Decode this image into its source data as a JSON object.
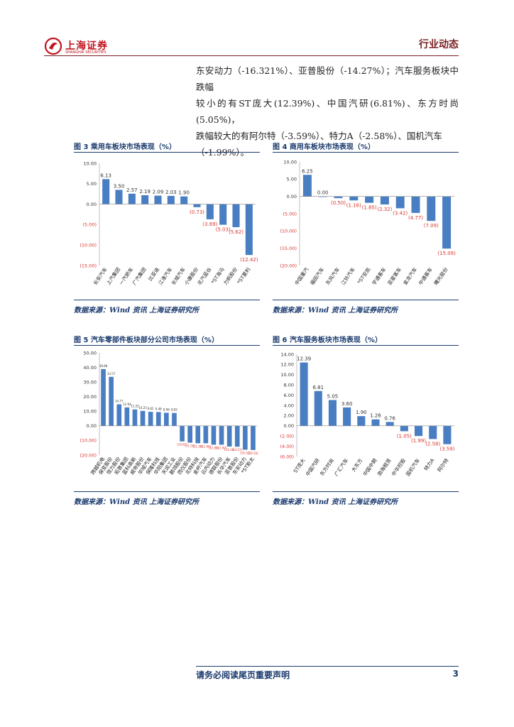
{
  "header": {
    "logo_text": "上海证券",
    "logo_sub": "SHANGHAI SECURITIES",
    "doc_type": "行业动态"
  },
  "body_text": {
    "lines": [
      "东安动力（-16.321%）、亚普股份（-14.27%）；汽车服务板块中跌幅",
      "较小的有ST庞大(12.39%)、中国汽研(6.81%)、东方时尚(5.05%)，",
      "跌幅较大的有阿尔特（-3.59%）、特力A（-2.58%）、国机汽车",
      "（-1.99%）。"
    ]
  },
  "colors": {
    "bar": "#4a7ec2",
    "neg_label": "#d9352f",
    "title": "#1a3a6e",
    "brand": "#c0131d"
  },
  "charts": [
    {
      "title": "图 3 乘用车板块市场表现（%）",
      "source": "数据来源：Wind 资讯 上海证券研究所"
    },
    {
      "title": "图 4 商用车板块市场表现（%）",
      "source": "数据来源：Wind 资讯 上海证券研究所"
    },
    {
      "title": "图 5 汽车零部件板块部分公司市场表现（%）",
      "source": "数据来源：Wind 资讯 上海证券研究所"
    },
    {
      "title": "图 6 汽车服务板块市场表现（%）",
      "source": "数据来源：Wind 资讯 上海证券研究所"
    }
  ],
  "chart_data": [
    {
      "type": "bar",
      "title": "图 3 乘用车板块市场表现（%）",
      "categories": [
        "长安汽车",
        "上汽集团",
        "一汽轿车",
        "广汽集团",
        "比亚迪",
        "江淮汽车",
        "长城汽车",
        "小康股份",
        "北汽蓝谷",
        "*ST海马",
        "力帆股份",
        "*ST夏利"
      ],
      "values": [
        6.13,
        3.5,
        2.57,
        2.19,
        2.09,
        2.03,
        1.9,
        -0.73,
        -3.69,
        -5.03,
        -5.62,
        -12.42
      ],
      "labels": [
        "6.13",
        "3.50",
        "2.57",
        "2.19",
        "2.09",
        "2.03",
        "1.90",
        "(0.73)",
        "(3.69)",
        "(5.03)",
        "(5.62)",
        "(12.42)"
      ],
      "yticks": [
        "10.00",
        "5.00",
        "0.00",
        "(5.00)",
        "(10.00)",
        "(15.00)"
      ],
      "ylim": [
        -15,
        10
      ]
    },
    {
      "type": "bar",
      "title": "图 4 商用车板块市场表现（%）",
      "categories": [
        "中国重汽",
        "福田汽车",
        "东风汽车",
        "江铃汽车",
        "*ST安凯",
        "宇通客车",
        "亚星客车",
        "金龙汽车",
        "中通客车",
        "曙光股份"
      ],
      "values": [
        6.25,
        0.0,
        -0.5,
        -1.16,
        -1.85,
        -2.32,
        -3.42,
        -4.77,
        -7.09,
        -15.09
      ],
      "labels": [
        "6.25",
        "0.00",
        "(0.50)",
        "(1.16)",
        "(1.85)",
        "(2.32)",
        "(3.42)",
        "(4.77)",
        "(7.09)",
        "(15.09)"
      ],
      "yticks": [
        "10.00",
        "5.00",
        "0.00",
        "(5.00)",
        "(10.00)",
        "(15.00)",
        "(20.00)"
      ],
      "ylim": [
        -20,
        10
      ]
    },
    {
      "type": "bar",
      "title": "图 5 汽车零部件板块部分公司市场表现（%）",
      "categories": [
        "跨越机电",
        "保变股份",
        "恒力股份",
        "拓普集团",
        "蓝科高新",
        "威帝股份",
        "华域汽车",
        "保隆科技",
        "华阳集团",
        "天润工业",
        "鹏翎股份",
        "西仪股份",
        "北特科技",
        "金杯汽车",
        "云内动力",
        "德联股份",
        "长华汽车",
        "亚普股份",
        "东安动力",
        "*ST斯太"
      ],
      "values": [
        38.88,
        33.57,
        14.77,
        12.64,
        11.25,
        10.25,
        9.62,
        9.48,
        8.96,
        8.82,
        -10.62,
        -11.5,
        -11.9,
        -11.9,
        -12.9,
        -12.9,
        -14.16,
        -14.27,
        -16.32,
        -16.5
      ],
      "labels": [
        "38.88",
        "33.57",
        "14.77",
        "12.64",
        "11.25",
        "10.25",
        "9.62",
        "9.48",
        "8.96",
        "8.82",
        "(10.62)",
        "(11.50)",
        "(11.90)",
        "(11.90)",
        "(12.90)",
        "(12.90)",
        "(14.16)",
        "(14.27)",
        "(16.32)",
        "(16.50)"
      ],
      "yticks": [
        "50.00",
        "40.00",
        "30.00",
        "20.00",
        "10.00",
        "0.00",
        "(10.00)",
        "(20.00)"
      ],
      "ylim": [
        -20,
        50
      ]
    },
    {
      "type": "bar",
      "title": "图 6 汽车服务板块市场表现（%）",
      "categories": [
        "ST庞大",
        "中国汽研",
        "东方时尚",
        "广汇汽车",
        "大东方",
        "中国中期",
        "渤海租赁",
        "中华控股",
        "国机汽车",
        "特力A",
        "阿尔特"
      ],
      "values": [
        12.39,
        6.81,
        5.05,
        3.6,
        1.9,
        1.26,
        0.76,
        -1.05,
        -1.99,
        -2.58,
        -3.59
      ],
      "labels": [
        "12.39",
        "6.81",
        "5.05",
        "3.60",
        "1.90",
        "1.26",
        "0.76",
        "(1.05)",
        "(1.99)",
        "(2.58)",
        "(3.59)"
      ],
      "yticks": [
        "14.00",
        "12.00",
        "10.00",
        "8.00",
        "6.00",
        "4.00",
        "2.00",
        "0.00",
        "(2.00)",
        "(4.00)",
        "(6.00)"
      ],
      "ylim": [
        -6,
        14
      ]
    }
  ],
  "footer": {
    "note": "请务必阅读尾页重要声明",
    "page": "3"
  }
}
